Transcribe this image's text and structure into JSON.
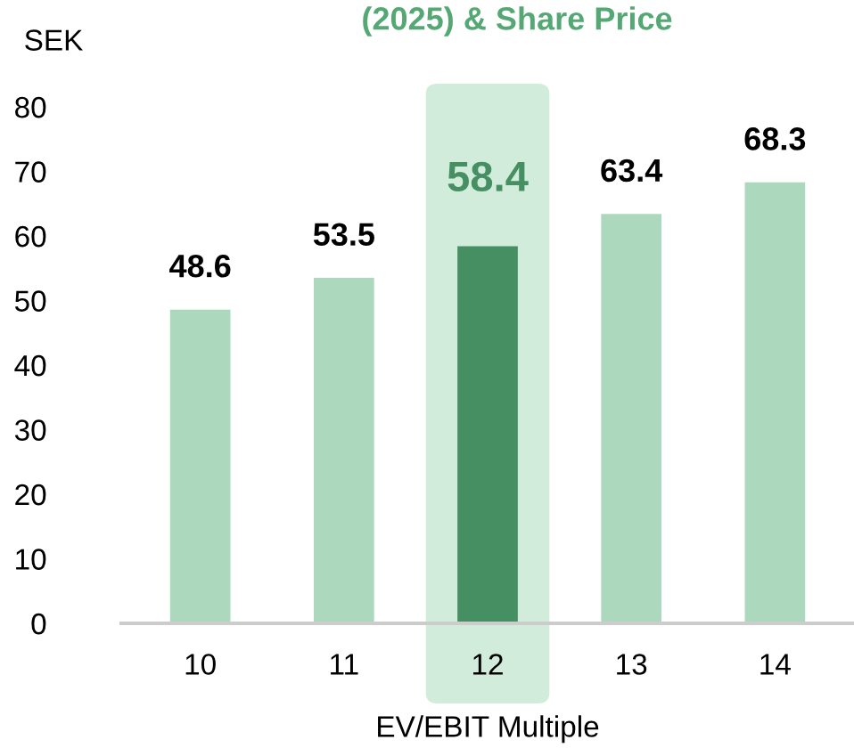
{
  "chart_data": {
    "type": "bar",
    "title": "(2025) & Share Price",
    "ylabel": "SEK",
    "xlabel": "EV/EBIT Multiple",
    "categories": [
      "10",
      "11",
      "12",
      "13",
      "14"
    ],
    "values": [
      48.6,
      53.5,
      58.4,
      63.4,
      68.3
    ],
    "colors": [
      "#acd8bd",
      "#acd8bd",
      "#458f62",
      "#acd8bd",
      "#acd8bd"
    ],
    "ylim": [
      0,
      80
    ],
    "yticks": [
      0,
      10,
      20,
      30,
      40,
      50,
      60,
      70,
      80
    ],
    "bands": [
      {
        "axis": "x",
        "from": "12",
        "to": "12",
        "color": "#d2ecdb"
      }
    ],
    "data_labels": true,
    "grid": false
  }
}
